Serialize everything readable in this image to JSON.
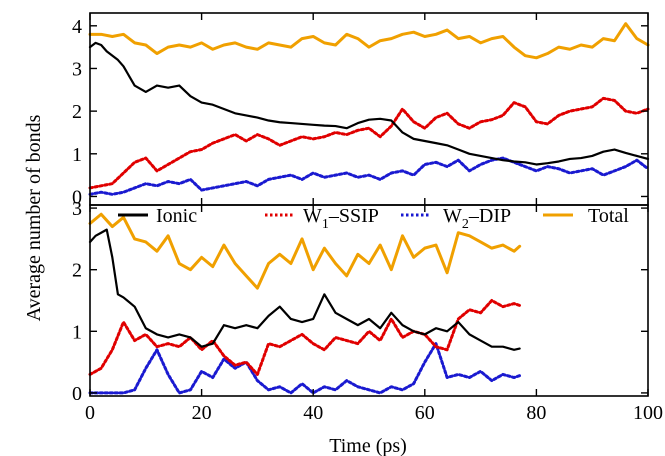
{
  "chart_data": {
    "type": "line",
    "xlabel": "Time (ps)",
    "ylabel": "Average number of bonds",
    "legend": {
      "placement": "top-center of bottom panel",
      "entries": [
        {
          "key": "Ionic",
          "color": "#000000",
          "dash": "solid"
        },
        {
          "key": "W1SSIP",
          "color": "#e00000",
          "dash": "dotted"
        },
        {
          "key": "W2DIP",
          "color": "#1a1ad0",
          "dash": "dotted"
        },
        {
          "key": "Total",
          "color": "#f0a000",
          "dash": "solid"
        }
      ]
    },
    "legend_text": {
      "ionic": "Ionic",
      "w1_main": "W",
      "w1_sub": "1",
      "w1_suffix": "–SSIP",
      "w2_main": "W",
      "w2_sub": "2",
      "w2_suffix": "–DIP",
      "total": "Total"
    },
    "panels": [
      {
        "xlim": [
          0,
          100
        ],
        "ylim": [
          -0.2,
          4.3
        ],
        "yticks": [
          0,
          1,
          2,
          3,
          4
        ],
        "xticks": [
          0,
          20,
          40,
          60,
          80,
          100
        ],
        "series": [
          {
            "key": "Ionic",
            "x": [
              0,
              1,
              2,
              3,
              4,
              5,
              6,
              8,
              10,
              12,
              14,
              16,
              18,
              20,
              22,
              24,
              26,
              28,
              30,
              32,
              34,
              36,
              38,
              40,
              42,
              44,
              46,
              48,
              50,
              52,
              54,
              56,
              58,
              60,
              62,
              64,
              66,
              68,
              70,
              72,
              74,
              76,
              78,
              80,
              82,
              84,
              86,
              88,
              90,
              92,
              94,
              96,
              98,
              100
            ],
            "y": [
              3.5,
              3.6,
              3.55,
              3.4,
              3.3,
              3.2,
              3.05,
              2.6,
              2.45,
              2.6,
              2.55,
              2.6,
              2.35,
              2.2,
              2.15,
              2.05,
              1.95,
              1.9,
              1.85,
              1.78,
              1.74,
              1.72,
              1.7,
              1.68,
              1.66,
              1.65,
              1.6,
              1.72,
              1.8,
              1.82,
              1.78,
              1.5,
              1.35,
              1.3,
              1.25,
              1.2,
              1.1,
              1.0,
              0.95,
              0.9,
              0.85,
              0.82,
              0.8,
              0.75,
              0.78,
              0.82,
              0.88,
              0.9,
              0.95,
              1.05,
              1.1,
              1.02,
              0.95,
              0.88
            ]
          },
          {
            "key": "W1SSIP",
            "x": [
              0,
              2,
              4,
              6,
              8,
              10,
              12,
              14,
              16,
              18,
              20,
              22,
              24,
              26,
              28,
              30,
              32,
              34,
              36,
              38,
              40,
              42,
              44,
              46,
              48,
              50,
              52,
              54,
              56,
              58,
              60,
              62,
              64,
              66,
              68,
              70,
              72,
              74,
              76,
              78,
              80,
              82,
              84,
              86,
              88,
              90,
              92,
              94,
              96,
              98,
              100
            ],
            "y": [
              0.2,
              0.25,
              0.3,
              0.55,
              0.8,
              0.9,
              0.6,
              0.75,
              0.9,
              1.05,
              1.1,
              1.25,
              1.35,
              1.45,
              1.3,
              1.45,
              1.35,
              1.2,
              1.3,
              1.4,
              1.35,
              1.4,
              1.5,
              1.45,
              1.55,
              1.6,
              1.4,
              1.65,
              2.05,
              1.75,
              1.6,
              1.85,
              1.95,
              1.7,
              1.6,
              1.75,
              1.8,
              1.9,
              2.2,
              2.1,
              1.75,
              1.7,
              1.9,
              2.0,
              2.05,
              2.1,
              2.3,
              2.25,
              2.0,
              1.95,
              2.05
            ]
          },
          {
            "key": "W2DIP",
            "x": [
              0,
              2,
              4,
              6,
              8,
              10,
              12,
              14,
              16,
              18,
              20,
              22,
              24,
              26,
              28,
              30,
              32,
              34,
              36,
              38,
              40,
              42,
              44,
              46,
              48,
              50,
              52,
              54,
              56,
              58,
              60,
              62,
              64,
              66,
              68,
              70,
              72,
              74,
              76,
              78,
              80,
              82,
              84,
              86,
              88,
              90,
              92,
              94,
              96,
              98,
              100
            ],
            "y": [
              0.05,
              0.1,
              0.05,
              0.1,
              0.2,
              0.3,
              0.25,
              0.35,
              0.3,
              0.4,
              0.15,
              0.2,
              0.25,
              0.3,
              0.35,
              0.25,
              0.4,
              0.45,
              0.5,
              0.4,
              0.55,
              0.45,
              0.5,
              0.55,
              0.45,
              0.5,
              0.4,
              0.55,
              0.6,
              0.5,
              0.75,
              0.8,
              0.7,
              0.85,
              0.6,
              0.75,
              0.85,
              0.9,
              0.8,
              0.7,
              0.6,
              0.7,
              0.65,
              0.55,
              0.6,
              0.65,
              0.5,
              0.6,
              0.7,
              0.85,
              0.65
            ]
          },
          {
            "key": "Total",
            "x": [
              0,
              2,
              4,
              6,
              8,
              10,
              12,
              14,
              16,
              18,
              20,
              22,
              24,
              26,
              28,
              30,
              32,
              34,
              36,
              38,
              40,
              42,
              44,
              46,
              48,
              50,
              52,
              54,
              56,
              58,
              60,
              62,
              64,
              66,
              68,
              70,
              72,
              74,
              76,
              78,
              80,
              82,
              84,
              86,
              88,
              90,
              92,
              94,
              96,
              98,
              100
            ],
            "y": [
              3.8,
              3.8,
              3.75,
              3.8,
              3.6,
              3.55,
              3.35,
              3.5,
              3.55,
              3.5,
              3.6,
              3.45,
              3.55,
              3.6,
              3.5,
              3.45,
              3.6,
              3.55,
              3.5,
              3.7,
              3.75,
              3.6,
              3.55,
              3.8,
              3.7,
              3.5,
              3.65,
              3.7,
              3.8,
              3.85,
              3.75,
              3.8,
              3.9,
              3.7,
              3.75,
              3.6,
              3.7,
              3.75,
              3.5,
              3.3,
              3.25,
              3.35,
              3.5,
              3.45,
              3.55,
              3.5,
              3.7,
              3.65,
              4.05,
              3.7,
              3.55
            ]
          }
        ]
      },
      {
        "xlim": [
          0,
          100
        ],
        "ylim": [
          -0.05,
          3.05
        ],
        "yticks": [
          0,
          1,
          2,
          3
        ],
        "xticks": [
          0,
          20,
          40,
          60,
          80,
          100
        ],
        "series": [
          {
            "key": "Ionic",
            "x": [
              0,
              1,
              2,
              3,
              4,
              5,
              6,
              8,
              10,
              12,
              14,
              16,
              18,
              20,
              22,
              24,
              26,
              28,
              30,
              32,
              34,
              36,
              38,
              40,
              42,
              44,
              46,
              48,
              50,
              52,
              54,
              56,
              58,
              60,
              62,
              64,
              66,
              68,
              70,
              72,
              74,
              76,
              77
            ],
            "y": [
              2.45,
              2.55,
              2.6,
              2.65,
              2.2,
              1.6,
              1.55,
              1.4,
              1.05,
              0.95,
              0.9,
              0.95,
              0.9,
              0.75,
              0.8,
              1.1,
              1.05,
              1.1,
              1.05,
              1.25,
              1.4,
              1.2,
              1.15,
              1.2,
              1.6,
              1.3,
              1.2,
              1.1,
              1.2,
              1.05,
              1.3,
              1.1,
              1.0,
              0.95,
              1.05,
              1.0,
              1.15,
              0.95,
              0.85,
              0.75,
              0.75,
              0.7,
              0.72
            ]
          },
          {
            "key": "W1SSIP",
            "x": [
              0,
              2,
              4,
              6,
              8,
              10,
              12,
              14,
              16,
              18,
              20,
              22,
              24,
              26,
              28,
              30,
              32,
              34,
              36,
              38,
              40,
              42,
              44,
              46,
              48,
              50,
              52,
              54,
              56,
              58,
              60,
              62,
              64,
              66,
              68,
              70,
              72,
              74,
              76,
              77
            ],
            "y": [
              0.3,
              0.4,
              0.7,
              1.15,
              0.85,
              0.95,
              0.75,
              0.8,
              0.75,
              0.9,
              0.7,
              0.85,
              0.6,
              0.45,
              0.5,
              0.3,
              0.8,
              0.75,
              0.85,
              0.95,
              0.8,
              0.7,
              0.9,
              0.85,
              0.8,
              1.0,
              0.85,
              1.2,
              0.9,
              1.0,
              0.95,
              0.75,
              0.7,
              1.2,
              1.35,
              1.3,
              1.5,
              1.4,
              1.45,
              1.42
            ]
          },
          {
            "key": "W2DIP",
            "x": [
              0,
              2,
              4,
              6,
              8,
              10,
              12,
              14,
              16,
              18,
              20,
              22,
              24,
              26,
              28,
              30,
              32,
              34,
              36,
              38,
              40,
              42,
              44,
              46,
              48,
              50,
              52,
              54,
              56,
              58,
              60,
              62,
              64,
              66,
              68,
              70,
              72,
              74,
              76,
              77
            ],
            "y": [
              0.0,
              0.0,
              0.0,
              0.0,
              0.05,
              0.4,
              0.7,
              0.3,
              0.0,
              0.05,
              0.35,
              0.25,
              0.55,
              0.4,
              0.5,
              0.2,
              0.05,
              0.1,
              0.0,
              0.15,
              0.0,
              0.1,
              0.05,
              0.2,
              0.1,
              0.05,
              0.0,
              0.1,
              0.05,
              0.15,
              0.5,
              0.8,
              0.25,
              0.3,
              0.25,
              0.35,
              0.2,
              0.3,
              0.25,
              0.28
            ]
          },
          {
            "key": "Total",
            "x": [
              0,
              2,
              4,
              6,
              8,
              10,
              12,
              14,
              16,
              18,
              20,
              22,
              24,
              26,
              28,
              30,
              32,
              34,
              36,
              38,
              40,
              42,
              44,
              46,
              48,
              50,
              52,
              54,
              56,
              58,
              60,
              62,
              64,
              66,
              68,
              70,
              72,
              74,
              76,
              77
            ],
            "y": [
              2.75,
              2.9,
              2.7,
              2.85,
              2.5,
              2.45,
              2.3,
              2.55,
              2.1,
              2.0,
              2.2,
              2.05,
              2.4,
              2.1,
              1.9,
              1.7,
              2.1,
              2.25,
              2.1,
              2.5,
              2.0,
              2.35,
              2.1,
              1.9,
              2.25,
              2.1,
              2.4,
              2.0,
              2.55,
              2.2,
              2.35,
              2.4,
              1.95,
              2.6,
              2.55,
              2.45,
              2.35,
              2.4,
              2.3,
              2.38
            ]
          }
        ]
      }
    ]
  }
}
